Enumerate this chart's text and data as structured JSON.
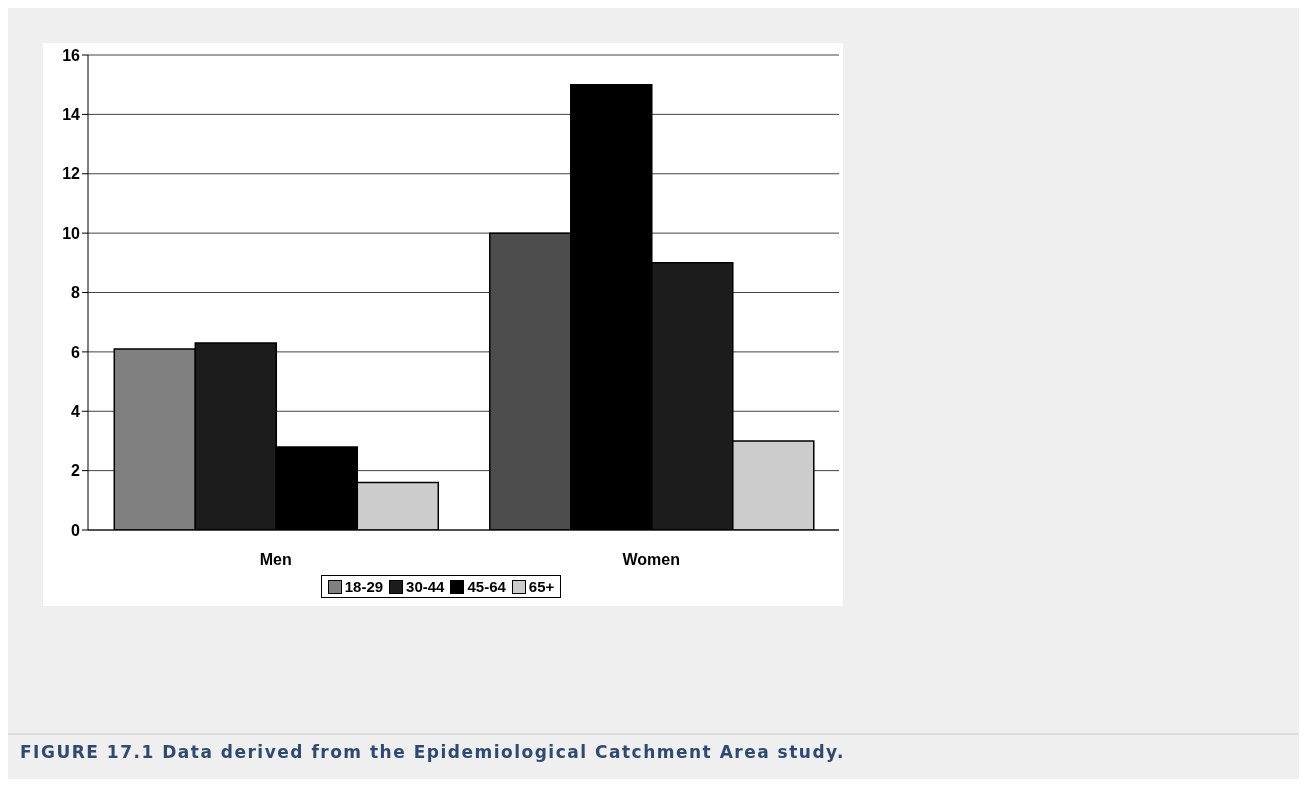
{
  "chart_data": {
    "type": "bar",
    "categories": [
      "Men",
      "Women"
    ],
    "series": [
      {
        "name": "18-29",
        "color": "#808080",
        "colors": [
          "#808080",
          "#4d4d4d"
        ],
        "values": [
          6.1,
          10
        ]
      },
      {
        "name": "30-44",
        "color": "#1c1c1c",
        "colors": [
          "#1c1c1c",
          "#000000"
        ],
        "values": [
          6.3,
          15
        ]
      },
      {
        "name": "45-64",
        "color": "#000000",
        "colors": [
          "#000000",
          "#1c1c1c"
        ],
        "values": [
          2.8,
          9
        ]
      },
      {
        "name": "65+",
        "color": "#cccccc",
        "colors": [
          "#cccccc",
          "#cccccc"
        ],
        "values": [
          1.6,
          3
        ]
      }
    ],
    "ylim": [
      0,
      16
    ],
    "yticks": [
      0,
      2,
      4,
      6,
      8,
      10,
      12,
      14,
      16
    ],
    "grid": "y",
    "legend": "bottom",
    "annotations": [
      "FIGURE 17.1 Data derived from the Epidemiological Catchment Area study."
    ]
  }
}
